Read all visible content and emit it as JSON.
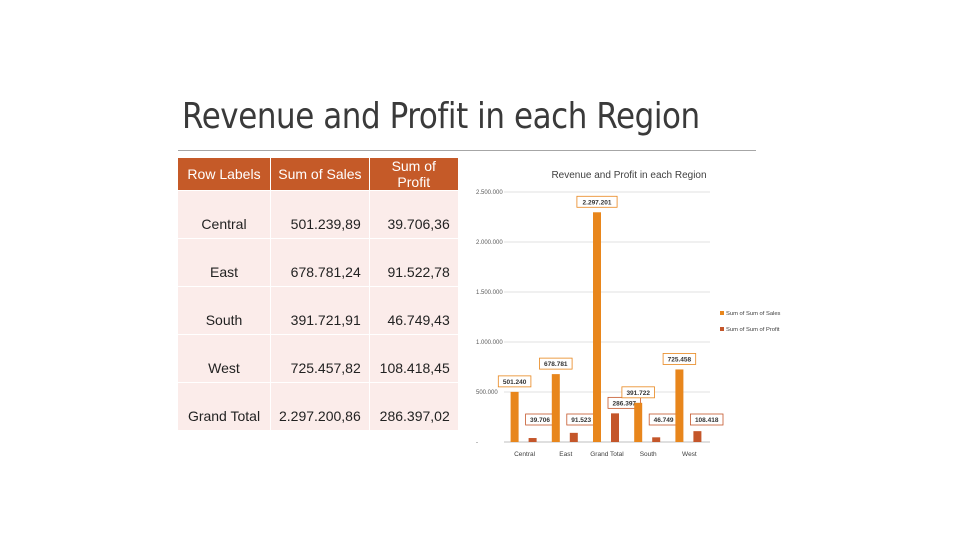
{
  "slide": {
    "title": "Revenue and Profit in each Region"
  },
  "table": {
    "headers": [
      "Row Labels",
      "Sum of Sales",
      "Sum of Profit"
    ],
    "rows": [
      [
        "Central",
        "501.239,89",
        "39.706,36"
      ],
      [
        "East",
        "678.781,24",
        "91.522,78"
      ],
      [
        "South",
        "391.721,91",
        "46.749,43"
      ],
      [
        "West",
        "725.457,82",
        "108.418,45"
      ],
      [
        "Grand Total",
        "2.297.200,86",
        "286.397,02"
      ]
    ]
  },
  "colors": {
    "sales": "#e8861c",
    "profit": "#c4562a",
    "header": "#c55a28",
    "row_bg": "#fbecea"
  },
  "chart_data": {
    "type": "bar",
    "title": "Revenue and Profit in each Region",
    "categories": [
      "Central",
      "East",
      "Grand Total",
      "South",
      "West"
    ],
    "series": [
      {
        "name": "Sum of Sum of Sales",
        "values": [
          501240,
          678781,
          2297201,
          391722,
          725458
        ],
        "labels": [
          "501.240",
          "678.781",
          "2.297.201",
          "391.722",
          "725.458"
        ]
      },
      {
        "name": "Sum of Sum of Profit",
        "values": [
          39706,
          91523,
          286397,
          46749,
          108418
        ],
        "labels": [
          "39.706",
          "91.523",
          "286.397",
          "46.749",
          "108.418"
        ]
      }
    ],
    "yticks": [
      0,
      500000,
      1000000,
      1500000,
      2000000,
      2500000
    ],
    "ytick_labels": [
      "-",
      "500.000",
      "1.000.000",
      "1.500.000",
      "2.000.000",
      "2.500.000"
    ],
    "ylim": [
      0,
      2500000
    ],
    "grid": true,
    "legend": "right"
  }
}
